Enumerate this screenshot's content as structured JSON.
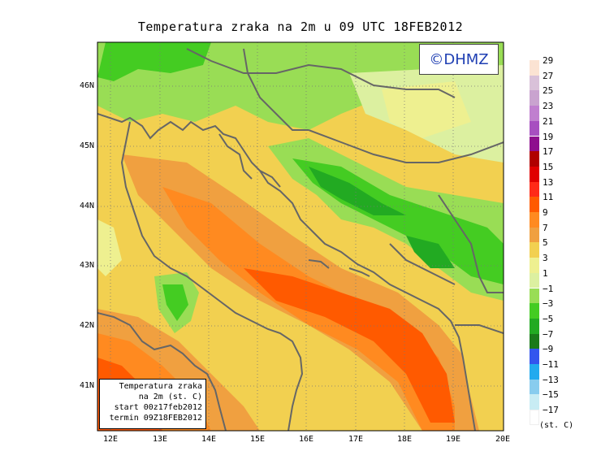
{
  "title": "Temperatura zraka na 2m u 09 UTC 18FEB2012",
  "logo": "©DHMZ",
  "info_box": {
    "line1": "Temperatura zraka",
    "line2": "na 2m (st. C)",
    "line3": "start 00z17feb2012",
    "line4": "termin 09Z18FEB2012"
  },
  "axes": {
    "lat_labels": [
      "46N",
      "45N",
      "44N",
      "43N",
      "42N",
      "41N"
    ],
    "lon_labels": [
      "12E",
      "13E",
      "14E",
      "15E",
      "16E",
      "17E",
      "18E",
      "19E",
      "20E"
    ]
  },
  "legend": {
    "units": "(st. C)",
    "labels": [
      "29",
      "27",
      "25",
      "23",
      "21",
      "19",
      "17",
      "15",
      "13",
      "11",
      "9",
      "7",
      "5",
      "3",
      "1",
      "−1",
      "−3",
      "−5",
      "−7",
      "−9",
      "−11",
      "−13",
      "−15",
      "−17"
    ],
    "colors": [
      "#fbe3d3",
      "#d9c1d9",
      "#c9a3cf",
      "#c07fcf",
      "#a74fc0",
      "#8e0f8e",
      "#b00000",
      "#e00000",
      "#ff2a18",
      "#ff5a00",
      "#ff8a20",
      "#f0a040",
      "#f2d050",
      "#eef090",
      "#dcf0a0",
      "#99dd55",
      "#44cc22",
      "#22aa22",
      "#1a7a1a",
      "#3355ee",
      "#22aaee",
      "#88ccee",
      "#c8ecf4",
      "#ffffff"
    ]
  },
  "colors": {
    "coast": "#666666",
    "grid": "#777777"
  }
}
